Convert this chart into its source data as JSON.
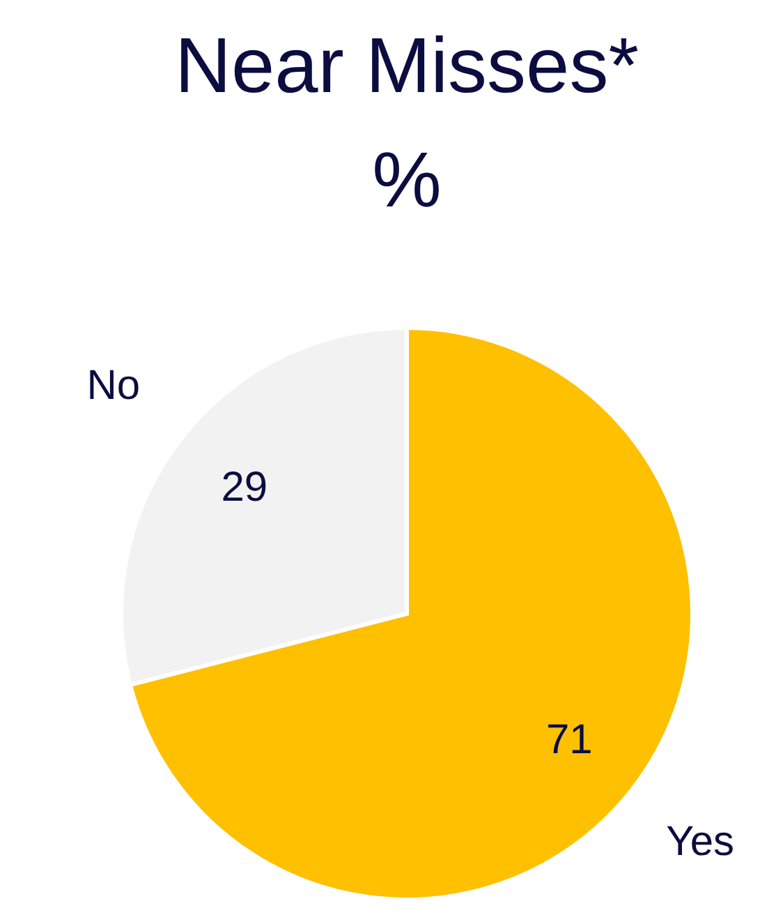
{
  "chart_data": {
    "type": "pie",
    "title": "Near Misses*",
    "subtitle": "%",
    "categories": [
      "Yes",
      "No"
    ],
    "values": [
      71,
      29
    ],
    "colors": [
      "#ffc000",
      "#f2f2f2"
    ],
    "data_labels": true
  }
}
